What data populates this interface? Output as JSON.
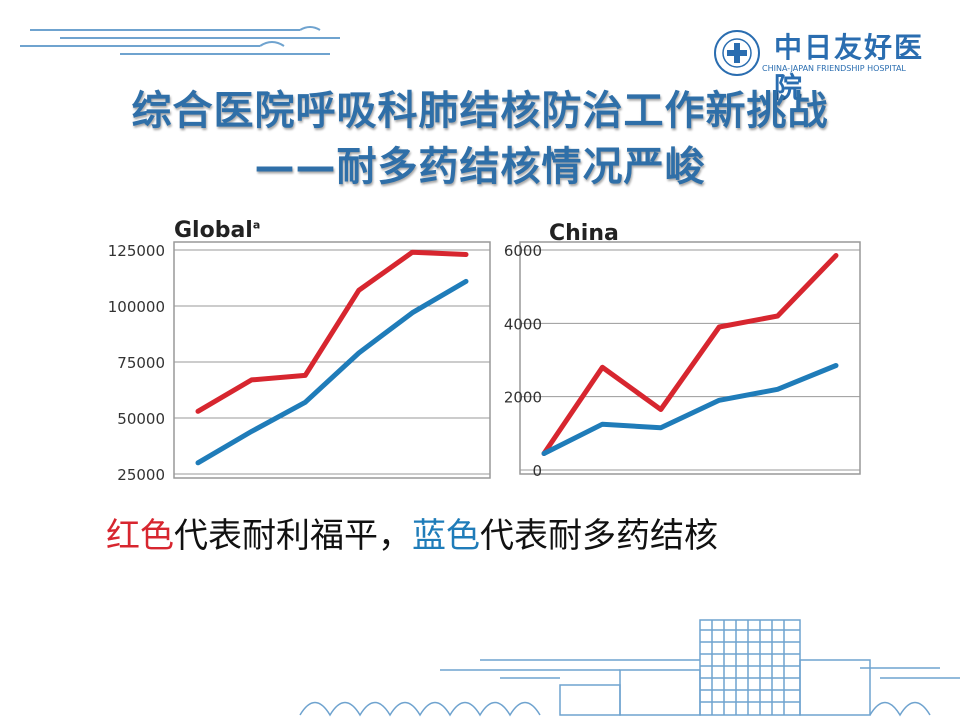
{
  "title": {
    "line1": "综合医院呼吸科肺结核防治工作新挑战",
    "line2": "——耐多药结核情况严峻"
  },
  "logo": {
    "cn": "中日友好医院",
    "en": "CHINA-JAPAN FRIENDSHIP HOSPITAL"
  },
  "caption": {
    "red_word": "红色",
    "red_text": "代表耐利福平，",
    "blue_word": "蓝色",
    "blue_text": "代表耐多药结核"
  },
  "colors": {
    "title": "#2f6fa8",
    "red_series": "#d7262f",
    "blue_series": "#1f7cb9",
    "plot_bg": "#ffffff"
  },
  "chart_data": [
    {
      "type": "line",
      "title": "Global",
      "title_sup": "a",
      "x": [
        1,
        2,
        3,
        4,
        5,
        6
      ],
      "ylim": [
        25000,
        125000
      ],
      "yticks": [
        125000,
        100000,
        75000,
        50000,
        25000
      ],
      "ytick_labels": [
        "125000",
        "100000",
        "75000",
        "50000",
        "25000"
      ],
      "grid": true,
      "series": [
        {
          "color": "red",
          "values": [
            53000,
            67000,
            69000,
            107000,
            124000,
            123000
          ]
        },
        {
          "color": "blue",
          "values": [
            30000,
            44000,
            57000,
            79000,
            97000,
            111000
          ]
        }
      ]
    },
    {
      "type": "line",
      "title": "China",
      "x": [
        1,
        2,
        3,
        4,
        5,
        6
      ],
      "ylim": [
        0,
        6000
      ],
      "yticks": [
        6000,
        4000,
        2000,
        0
      ],
      "ytick_labels": [
        "6000",
        "4000",
        "2000",
        "0"
      ],
      "grid": true,
      "series": [
        {
          "color": "red",
          "values": [
            450,
            2800,
            1650,
            3900,
            4200,
            5850
          ]
        },
        {
          "color": "blue",
          "values": [
            450,
            1250,
            1150,
            1900,
            2200,
            2850
          ]
        }
      ]
    }
  ]
}
